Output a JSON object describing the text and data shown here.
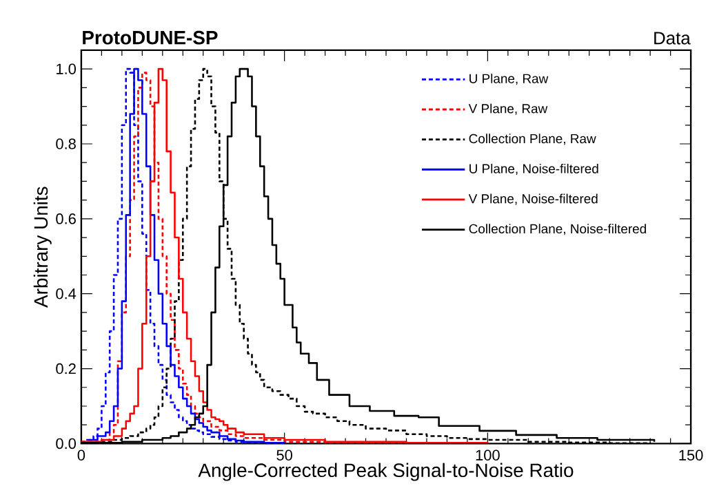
{
  "chart_data": {
    "type": "step",
    "title": "ProtoDUNE-SP",
    "annotations": [
      "Data"
    ],
    "xlabel": "Angle-Corrected Peak Signal-to-Noise Ratio",
    "ylabel": "Arbitrary Units",
    "xlim": [
      0,
      150
    ],
    "ylim": [
      0,
      1.05
    ],
    "xticks": [
      0,
      50,
      100,
      150
    ],
    "yticks": [
      {
        "value": 0,
        "label": "0.0"
      },
      {
        "value": 0.2,
        "label": "0.2"
      },
      {
        "value": 0.4,
        "label": "0.4"
      },
      {
        "value": 0.6,
        "label": "0.6"
      },
      {
        "value": 0.8,
        "label": "0.8"
      },
      {
        "value": 1,
        "label": "1.0"
      }
    ],
    "grid": false,
    "legend": "top right",
    "marker": "none",
    "series": [
      {
        "name": "U Plane, Raw",
        "color": "#0000ff",
        "line_style": "dashed",
        "x": [
          0,
          1,
          2,
          3,
          4,
          5,
          6,
          7,
          8,
          9,
          10,
          11,
          12,
          13,
          14,
          15,
          16,
          17,
          18,
          19,
          20,
          21,
          22,
          23,
          24,
          25,
          26,
          27,
          28,
          29,
          30,
          32,
          34,
          36,
          38,
          40,
          45,
          50
        ],
        "values": [
          0.005,
          0.01,
          0.01,
          0.02,
          0.04,
          0.1,
          0.19,
          0.3,
          0.45,
          0.6,
          0.85,
          1.0,
          0.99,
          0.85,
          0.7,
          0.56,
          0.41,
          0.32,
          0.26,
          0.21,
          0.17,
          0.13,
          0.11,
          0.09,
          0.07,
          0.06,
          0.05,
          0.04,
          0.035,
          0.03,
          0.025,
          0.018,
          0.012,
          0.008,
          0.005,
          0.003,
          0.001,
          0
        ]
      },
      {
        "name": "V Plane, Raw",
        "color": "#ff0000",
        "line_style": "dashed",
        "x": [
          0,
          5,
          7,
          8,
          9,
          10,
          11,
          12,
          13,
          14,
          15,
          16,
          17,
          18,
          19,
          20,
          21,
          22,
          23,
          24,
          25,
          26,
          27,
          28,
          29,
          30,
          32,
          34,
          36,
          38,
          40,
          45,
          50,
          60,
          80
        ],
        "values": [
          0.005,
          0.01,
          0.03,
          0.05,
          0.22,
          0.35,
          0.5,
          0.65,
          0.82,
          0.95,
          0.99,
          0.97,
          0.9,
          0.75,
          0.6,
          0.5,
          0.4,
          0.33,
          0.25,
          0.2,
          0.16,
          0.13,
          0.1,
          0.08,
          0.07,
          0.06,
          0.045,
          0.035,
          0.025,
          0.02,
          0.015,
          0.01,
          0.005,
          0.002,
          0.001
        ]
      },
      {
        "name": "Collection Plane, Raw",
        "color": "#000000",
        "line_style": "dashed",
        "x": [
          0,
          5,
          8,
          10,
          12,
          14,
          16,
          17,
          18,
          19,
          20,
          21,
          22,
          23,
          24,
          25,
          26,
          27,
          28,
          29,
          30,
          31,
          32,
          33,
          34,
          35,
          36,
          37,
          38,
          39,
          40,
          41,
          42,
          43,
          44,
          45,
          47,
          49,
          51,
          53,
          55,
          57,
          60,
          63,
          66,
          70,
          75,
          80,
          85,
          90,
          95,
          100,
          110,
          120,
          130,
          140
        ],
        "values": [
          0.003,
          0.005,
          0.01,
          0.015,
          0.02,
          0.03,
          0.04,
          0.05,
          0.07,
          0.1,
          0.15,
          0.2,
          0.28,
          0.38,
          0.49,
          0.6,
          0.74,
          0.84,
          0.92,
          0.97,
          1.0,
          0.98,
          0.9,
          0.83,
          0.7,
          0.6,
          0.52,
          0.44,
          0.37,
          0.32,
          0.28,
          0.24,
          0.21,
          0.19,
          0.17,
          0.15,
          0.14,
          0.13,
          0.12,
          0.1,
          0.085,
          0.08,
          0.07,
          0.06,
          0.05,
          0.04,
          0.035,
          0.025,
          0.02,
          0.015,
          0.012,
          0.01,
          0.005,
          0.003,
          0.001,
          0
        ]
      },
      {
        "name": "U Plane, Noise-filtered",
        "color": "#0000ff",
        "line_style": "solid",
        "x": [
          2,
          4,
          6,
          7,
          8,
          9,
          10,
          11,
          12,
          13,
          14,
          15,
          16,
          17,
          18,
          19,
          20,
          21,
          22,
          23,
          24,
          25,
          26,
          27,
          28,
          29,
          30,
          31,
          32,
          34,
          36,
          38,
          40,
          45,
          50
        ],
        "values": [
          0.01,
          0.02,
          0.03,
          0.06,
          0.1,
          0.2,
          0.38,
          0.61,
          0.88,
          1.0,
          0.97,
          0.88,
          0.74,
          0.61,
          0.49,
          0.4,
          0.32,
          0.26,
          0.21,
          0.18,
          0.15,
          0.12,
          0.1,
          0.08,
          0.065,
          0.055,
          0.045,
          0.035,
          0.03,
          0.02,
          0.012,
          0.008,
          0.005,
          0.002,
          0
        ]
      },
      {
        "name": "V Plane, Noise-filtered",
        "color": "#ff0000",
        "line_style": "solid",
        "x": [
          0,
          5,
          8,
          10,
          11,
          12,
          13,
          14,
          15,
          16,
          17,
          18,
          19,
          20,
          21,
          22,
          23,
          24,
          25,
          26,
          27,
          28,
          29,
          30,
          31,
          32,
          33,
          34,
          35,
          36,
          38,
          40,
          45,
          50,
          60,
          80,
          100
        ],
        "values": [
          0.005,
          0.01,
          0.02,
          0.04,
          0.06,
          0.08,
          0.1,
          0.2,
          0.32,
          0.5,
          0.7,
          0.91,
          1.0,
          0.97,
          0.78,
          0.67,
          0.55,
          0.44,
          0.35,
          0.28,
          0.22,
          0.18,
          0.14,
          0.11,
          0.09,
          0.07,
          0.065,
          0.06,
          0.05,
          0.04,
          0.03,
          0.025,
          0.015,
          0.01,
          0.005,
          0.002,
          0.001
        ]
      },
      {
        "name": "Collection Plane, Noise-filtered",
        "color": "#000000",
        "line_style": "solid",
        "x": [
          0,
          10,
          15,
          20,
          22,
          24,
          26,
          27,
          28,
          29,
          30,
          31,
          32,
          33,
          34,
          35,
          36,
          37,
          38,
          39,
          40,
          41,
          42,
          43,
          44,
          45,
          46,
          47,
          48,
          49,
          50,
          52,
          53,
          54,
          56,
          58,
          61,
          66,
          71,
          77,
          83,
          88,
          98,
          107,
          117,
          127,
          141
        ],
        "values": [
          0.002,
          0.005,
          0.01,
          0.015,
          0.02,
          0.03,
          0.04,
          0.05,
          0.07,
          0.08,
          0.1,
          0.21,
          0.35,
          0.47,
          0.58,
          0.69,
          0.82,
          0.91,
          0.98,
          1.0,
          1.0,
          0.98,
          0.9,
          0.82,
          0.74,
          0.66,
          0.6,
          0.53,
          0.48,
          0.44,
          0.37,
          0.31,
          0.27,
          0.24,
          0.215,
          0.17,
          0.13,
          0.1,
          0.087,
          0.074,
          0.07,
          0.047,
          0.034,
          0.023,
          0.015,
          0.01,
          0.005
        ]
      }
    ]
  }
}
